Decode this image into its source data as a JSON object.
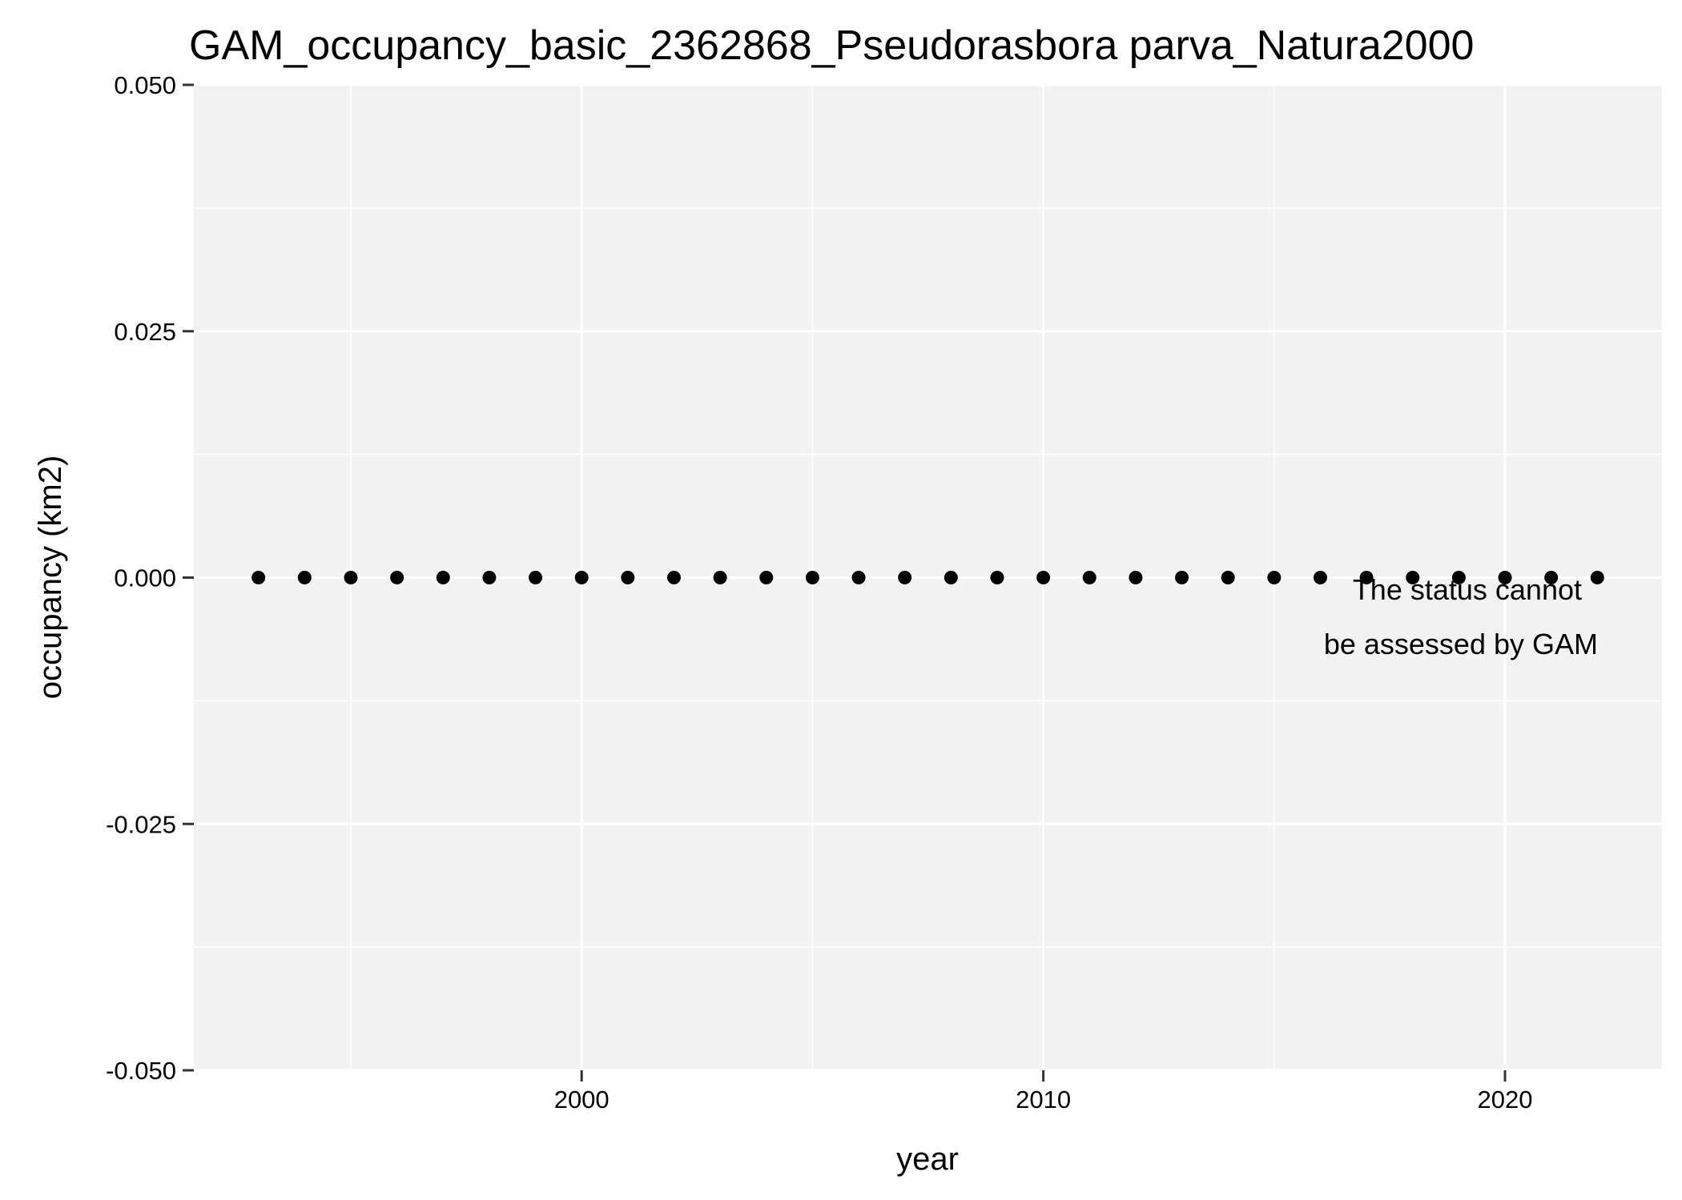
{
  "chart_data": {
    "type": "scatter",
    "title": "GAM_occupancy_basic_2362868_Pseudorasbora parva_Natura2000",
    "xlabel": "year",
    "ylabel": "occupancy (km2)",
    "xlim": [
      1991.6,
      2023.4
    ],
    "ylim": [
      -0.05,
      0.05
    ],
    "x_ticks": [
      2000,
      2010,
      2020
    ],
    "x_tick_labels": [
      "2000",
      "2010",
      "2020"
    ],
    "x_minor_ticks": [
      1995,
      2005,
      2015
    ],
    "y_ticks": [
      -0.05,
      -0.025,
      0,
      0.025,
      0.05
    ],
    "y_tick_labels": [
      "-0.050",
      "-0.025",
      "0.000",
      "0.025",
      "0.050"
    ],
    "y_minor_ticks": [
      -0.0375,
      -0.0125,
      0.0125,
      0.0375
    ],
    "grid": true,
    "series": [
      {
        "x": [
          1993,
          1994,
          1995,
          1996,
          1997,
          1998,
          1999,
          2000,
          2001,
          2002,
          2003,
          2004,
          2005,
          2006,
          2007,
          2008,
          2009,
          2010,
          2011,
          2012,
          2013,
          2014,
          2015,
          2016,
          2017,
          2018,
          2019,
          2020,
          2021,
          2022
        ],
        "y": [
          0,
          0,
          0,
          0,
          0,
          0,
          0,
          0,
          0,
          0,
          0,
          0,
          0,
          0,
          0,
          0,
          0,
          0,
          0,
          0,
          0,
          0,
          0,
          0,
          0,
          0,
          0,
          0,
          0,
          0
        ]
      }
    ],
    "annotation": {
      "lines": [
        "The status cannot",
        "be assessed by GAM"
      ],
      "color": "#ff0000"
    },
    "colors": {
      "panel_background": "#f2f2f2",
      "grid": "#ffffff",
      "point": "#000000"
    }
  }
}
